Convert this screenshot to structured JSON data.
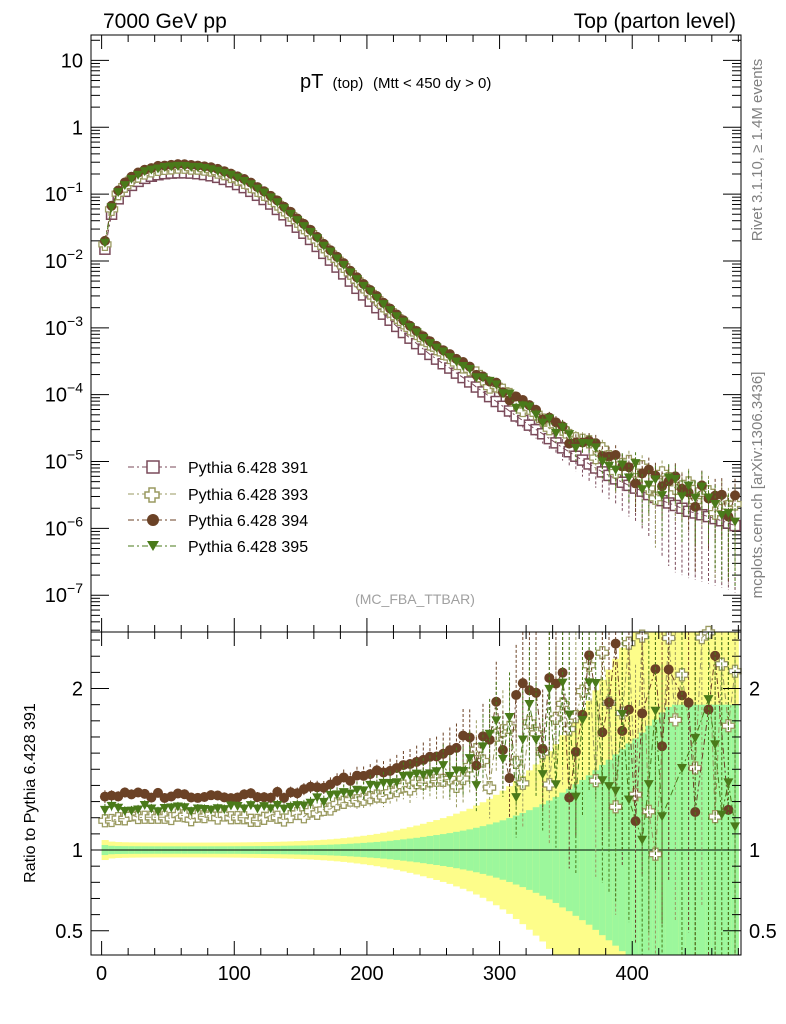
{
  "header": {
    "left": "7000 GeV pp",
    "right": "Top (parton level)"
  },
  "side_labels": {
    "rivet": "Rivet 3.1.10, ≥ 1.4M events",
    "mcplots": "mcplots.cern.ch [arXiv:1306.3436]"
  },
  "chart_data": {
    "type": "line",
    "title_main": "pT",
    "title_sub1": "(top)",
    "title_sub2": "(Mtt < 450 dy > 0)",
    "analysis": "(MC_FBA_TTBAR)",
    "xlabel": "",
    "xlim": [
      -8,
      482
    ],
    "xticks": [
      "0",
      "100",
      "200",
      "300",
      "400"
    ],
    "xtick_values": [
      0,
      100,
      200,
      300,
      400
    ],
    "main": {
      "yscale": "log",
      "ylim_log10": [
        -7.55,
        1.38
      ],
      "yticks": [
        {
          "base": "10",
          "exp": "",
          "v": 1
        },
        {
          "base": "1",
          "exp": "",
          "v": 0
        },
        {
          "base": "10",
          "exp": "−1",
          "v": -1
        },
        {
          "base": "10",
          "exp": "−2",
          "v": -2
        },
        {
          "base": "10",
          "exp": "−3",
          "v": -3
        },
        {
          "base": "10",
          "exp": "−4",
          "v": -4
        },
        {
          "base": "10",
          "exp": "−5",
          "v": -5
        },
        {
          "base": "10",
          "exp": "−6",
          "v": -6
        },
        {
          "base": "10",
          "exp": "−7",
          "v": -7
        }
      ]
    },
    "ratio": {
      "ylabel": "Ratio to Pythia 6.428 391",
      "ylim": [
        0.35,
        2.35
      ],
      "yticks": [
        "0.5",
        "1",
        "2"
      ],
      "ytick_values": [
        0.5,
        1,
        2
      ]
    },
    "series": [
      {
        "name": "Pythia 6.428 391",
        "color": "#7a4a5a",
        "marker": "open-square",
        "scale": 1.0,
        "ratio_offset": 0.0
      },
      {
        "name": "Pythia 6.428 393",
        "color": "#9a9a60",
        "marker": "open-cross",
        "scale": 1.22,
        "ratio_offset": -0.02
      },
      {
        "name": "Pythia 6.428 394",
        "color": "#6b4226",
        "marker": "filled-circle",
        "scale": 1.3,
        "ratio_offset": 0.04
      },
      {
        "name": "Pythia 6.428 395",
        "color": "#4a7a1a",
        "marker": "filled-triangle",
        "scale": 1.26,
        "ratio_offset": 0.0
      }
    ],
    "x": [
      2.5,
      7.5,
      12.5,
      17.5,
      22.5,
      27.5,
      32.5,
      37.5,
      42.5,
      47.5,
      52.5,
      57.5,
      62.5,
      67.5,
      72.5,
      77.5,
      82.5,
      87.5,
      92.5,
      97.5,
      102.5,
      107.5,
      112.5,
      117.5,
      122.5,
      127.5,
      132.5,
      137.5,
      142.5,
      147.5,
      152.5,
      157.5,
      162.5,
      167.5,
      172.5,
      177.5,
      182.5,
      187.5,
      192.5,
      197.5,
      202.5,
      207.5,
      212.5,
      217.5,
      222.5,
      227.5,
      232.5,
      237.5,
      242.5,
      247.5,
      252.5,
      257.5,
      262.5,
      267.5,
      272.5,
      277.5,
      282.5,
      287.5,
      292.5,
      297.5,
      302.5,
      307.5,
      312.5,
      317.5,
      322.5,
      327.5,
      332.5,
      337.5,
      342.5,
      347.5,
      352.5,
      357.5,
      362.5,
      367.5,
      372.5,
      377.5,
      382.5,
      387.5,
      392.5,
      397.5,
      402.5,
      407.5,
      412.5,
      417.5,
      422.5,
      427.5,
      432.5,
      437.5,
      442.5,
      447.5,
      452.5,
      457.5,
      462.5,
      467.5,
      472.5,
      477.5
    ],
    "ref_values": [
      0.015,
      0.05,
      0.085,
      0.11,
      0.135,
      0.155,
      0.172,
      0.185,
      0.195,
      0.202,
      0.206,
      0.208,
      0.208,
      0.206,
      0.202,
      0.196,
      0.188,
      0.178,
      0.166,
      0.153,
      0.139,
      0.125,
      0.11,
      0.096,
      0.083,
      0.071,
      0.059,
      0.049,
      0.04,
      0.032,
      0.026,
      0.021,
      0.0165,
      0.013,
      0.0103,
      0.0081,
      0.0064,
      0.005,
      0.0039,
      0.0031,
      0.0025,
      0.002,
      0.0016,
      0.0013,
      0.00105,
      0.00085,
      0.0007,
      0.00058,
      0.00048,
      0.0004,
      0.00034,
      0.00029,
      0.00025,
      0.00021,
      0.00018,
      0.000155,
      0.00013,
      0.00011,
      9.35e-05,
      7.9e-05,
      6.7e-05,
      5.7e-05,
      4.8e-05,
      4.1e-05,
      3.5e-05,
      3e-05,
      2.6e-05,
      2.2e-05,
      1.9e-05,
      1.6e-05,
      1.4e-05,
      1.2e-05,
      1.05e-05,
      9.2e-06,
      8e-06,
      7e-06,
      6.2e-06,
      5.5e-06,
      4.9e-06,
      4.4e-06,
      4e-06,
      3.6e-06,
      3.2e-06,
      2.9e-06,
      2.6e-06,
      2.4e-06,
      2.2e-06,
      2e-06,
      1.8e-06,
      1.7e-06,
      1.6e-06,
      1.5e-06,
      1.4e-06,
      1.3e-06,
      1.2e-06,
      1.1e-06
    ]
  }
}
